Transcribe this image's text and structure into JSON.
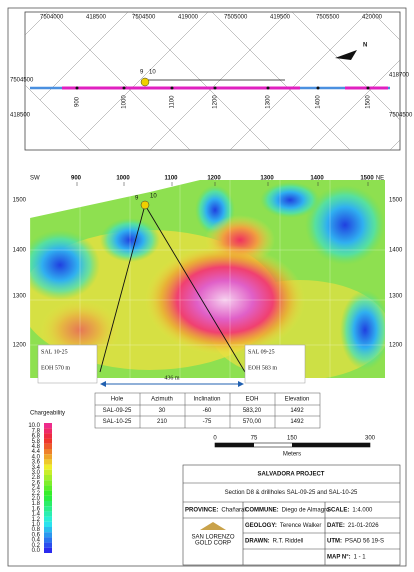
{
  "plan_map": {
    "top_coords": [
      "7504000",
      "418500",
      "7504500",
      "419000",
      "7505000",
      "419500",
      "7505500",
      "420000"
    ],
    "left_coords": [
      "7504500",
      "418500"
    ],
    "right_coords": [
      "418700",
      "7504500"
    ],
    "stations": [
      "900",
      "1000",
      "1100",
      "1200",
      "1300",
      "1400",
      "1500"
    ],
    "holes": [
      "9",
      "10"
    ],
    "north": "N"
  },
  "section": {
    "left_end": "SW",
    "right_end": "NE",
    "stations": [
      "900",
      "1000",
      "1100",
      "1200",
      "1300",
      "1400",
      "1500"
    ],
    "elevations": [
      "1500",
      "1400",
      "1300",
      "1200"
    ],
    "holes": [
      "9",
      "10"
    ],
    "hole_boxes": [
      {
        "name": "SAL 10-25",
        "eoh": "EOH 570 m"
      },
      {
        "name": "SAL 09-25",
        "eoh": "EOH 583 m"
      }
    ],
    "distance": "436 m"
  },
  "table": {
    "header": [
      "Hole",
      "Azimuth",
      "Inclination",
      "EOH",
      "Elevation"
    ],
    "rows": [
      [
        "SAL-09-25",
        "30",
        "-60",
        "583,20",
        "1492"
      ],
      [
        "SAL-10-25",
        "210",
        "-75",
        "570,00",
        "1492"
      ]
    ]
  },
  "legend": {
    "title": "Chargeability",
    "labels": [
      "10.0",
      "7.8",
      "6.8",
      "5.8",
      "4.8",
      "4.4",
      "4.0",
      "3.6",
      "3.4",
      "3.0",
      "2.8",
      "2.6",
      "2.4",
      "2.2",
      "2.0",
      "1.8",
      "1.6",
      "1.4",
      "1.2",
      "1.0",
      "0.8",
      "0.6",
      "0.4",
      "0.2",
      "0.0"
    ]
  },
  "scale_bar": {
    "labels": [
      "0",
      "75",
      "150",
      "300"
    ],
    "unit": "Meters"
  },
  "title_block": {
    "project": "SALVADORA PROJECT",
    "subtitle": "Section D8 & drillholes SAL-09-25 and SAL-10-25",
    "province_label": "PROVINCE:",
    "province": "Chañaral",
    "commune_label": "COMMUNE:",
    "commune": "Diego de Almagro",
    "scale_label": "SCALE:",
    "scale": "1:4.000",
    "geology_label": "GEOLOGY:",
    "geology": "Terence Walker",
    "date_label": "DATE:",
    "date": "21-01-2026",
    "drawn_label": "DRAWN:",
    "drawn": "R.T. Riddell",
    "utm_label": "UTM:",
    "utm": "PSAD 56 19-S",
    "map_label": "MAP N°:",
    "map": "1 - 1",
    "logo": "SAN LORENZO",
    "logo_sub": "GOLD CORP"
  }
}
